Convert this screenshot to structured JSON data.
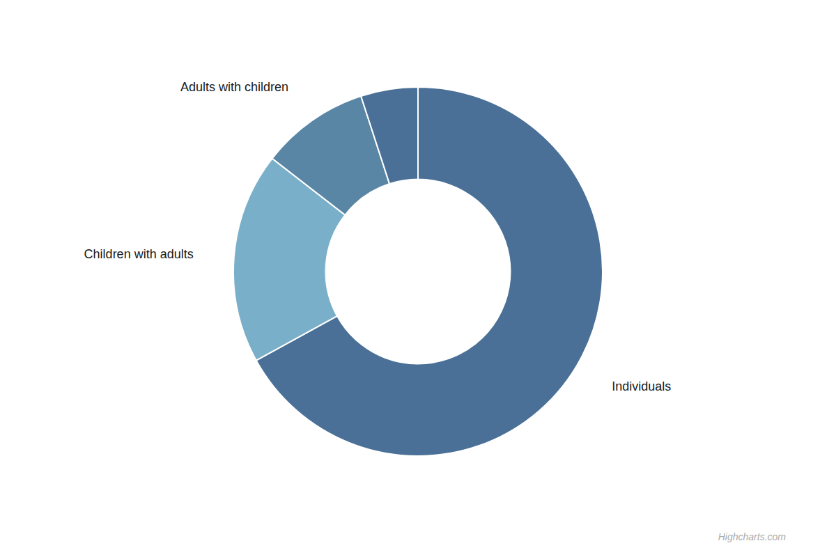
{
  "chart_data": {
    "type": "donut",
    "categories": [
      "Individuals",
      "Children with adults",
      "Adults with children",
      null
    ],
    "values": [
      67.0,
      18.5,
      9.5,
      5.0
    ],
    "colors": [
      "#4a7097",
      "#7aafc9",
      "#5a86a5",
      "#4a7097"
    ],
    "annotations": [
      "Highcharts.com"
    ]
  }
}
